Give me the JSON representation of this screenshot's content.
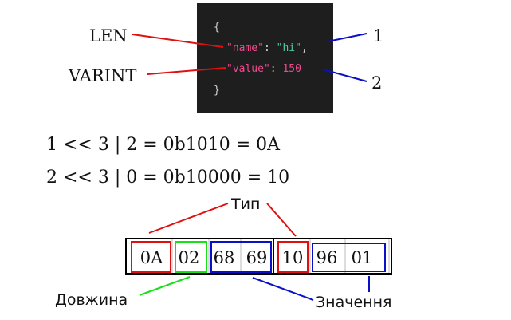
{
  "code_block": {
    "line1": "{",
    "line2": {
      "key": "\"name\"",
      "colon": ": ",
      "value": "\"hi\"",
      "comma": ","
    },
    "line3": {
      "key": "\"value\"",
      "colon": ": ",
      "value": "150"
    },
    "line4": "}"
  },
  "callouts": {
    "left_top": "LEN",
    "left_bottom": "VARINT",
    "right_top": "1",
    "right_bottom": "2"
  },
  "equations": {
    "first": "1 << 3 | 2 = 0b1010 = 0A",
    "second": "2 << 3 | 0 = 0b10000 = 10"
  },
  "bytes": [
    "0A",
    "02",
    "68",
    "69",
    "10",
    "96",
    "01"
  ],
  "labels": {
    "type": "Тип",
    "length": "Довжина",
    "value": "Значення"
  },
  "colors": {
    "code_bg": "#1e1e1e",
    "key": "#f2488f",
    "string": "#4ec9a7",
    "number": "#f2488f",
    "punct": "#d4d4d4",
    "red": "#e01010",
    "blue": "#0a10c8",
    "green": "#18e018"
  }
}
